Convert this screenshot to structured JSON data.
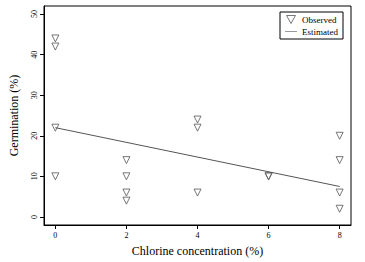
{
  "chart_data": {
    "type": "scatter",
    "x_label": "Chlorine concentration (%)",
    "y_label": "Germination (%)",
    "xlim": [
      -0.32,
      8.32
    ],
    "xticks": [
      0,
      2,
      4,
      6,
      8
    ],
    "ylim": [
      -2,
      52
    ],
    "yticks": [
      0,
      10,
      20,
      30,
      40,
      50
    ],
    "grid": false,
    "legend": "upper right",
    "series": [
      {
        "name": "Observed",
        "type": "scatter",
        "marker": "triangle-down",
        "color": "#555555",
        "x": [
          0,
          0,
          0,
          0,
          2,
          2,
          2,
          2,
          4,
          4,
          4,
          6,
          6,
          8,
          8,
          8,
          8
        ],
        "values": [
          44,
          42,
          22,
          10,
          14,
          10,
          6,
          4,
          24,
          22,
          6,
          10,
          10,
          20,
          14,
          6,
          2
        ]
      },
      {
        "name": "Estimated",
        "type": "line",
        "line_style": "solid",
        "color": "#555555",
        "x": [
          0,
          8
        ],
        "values": [
          22,
          7.5
        ]
      }
    ]
  }
}
